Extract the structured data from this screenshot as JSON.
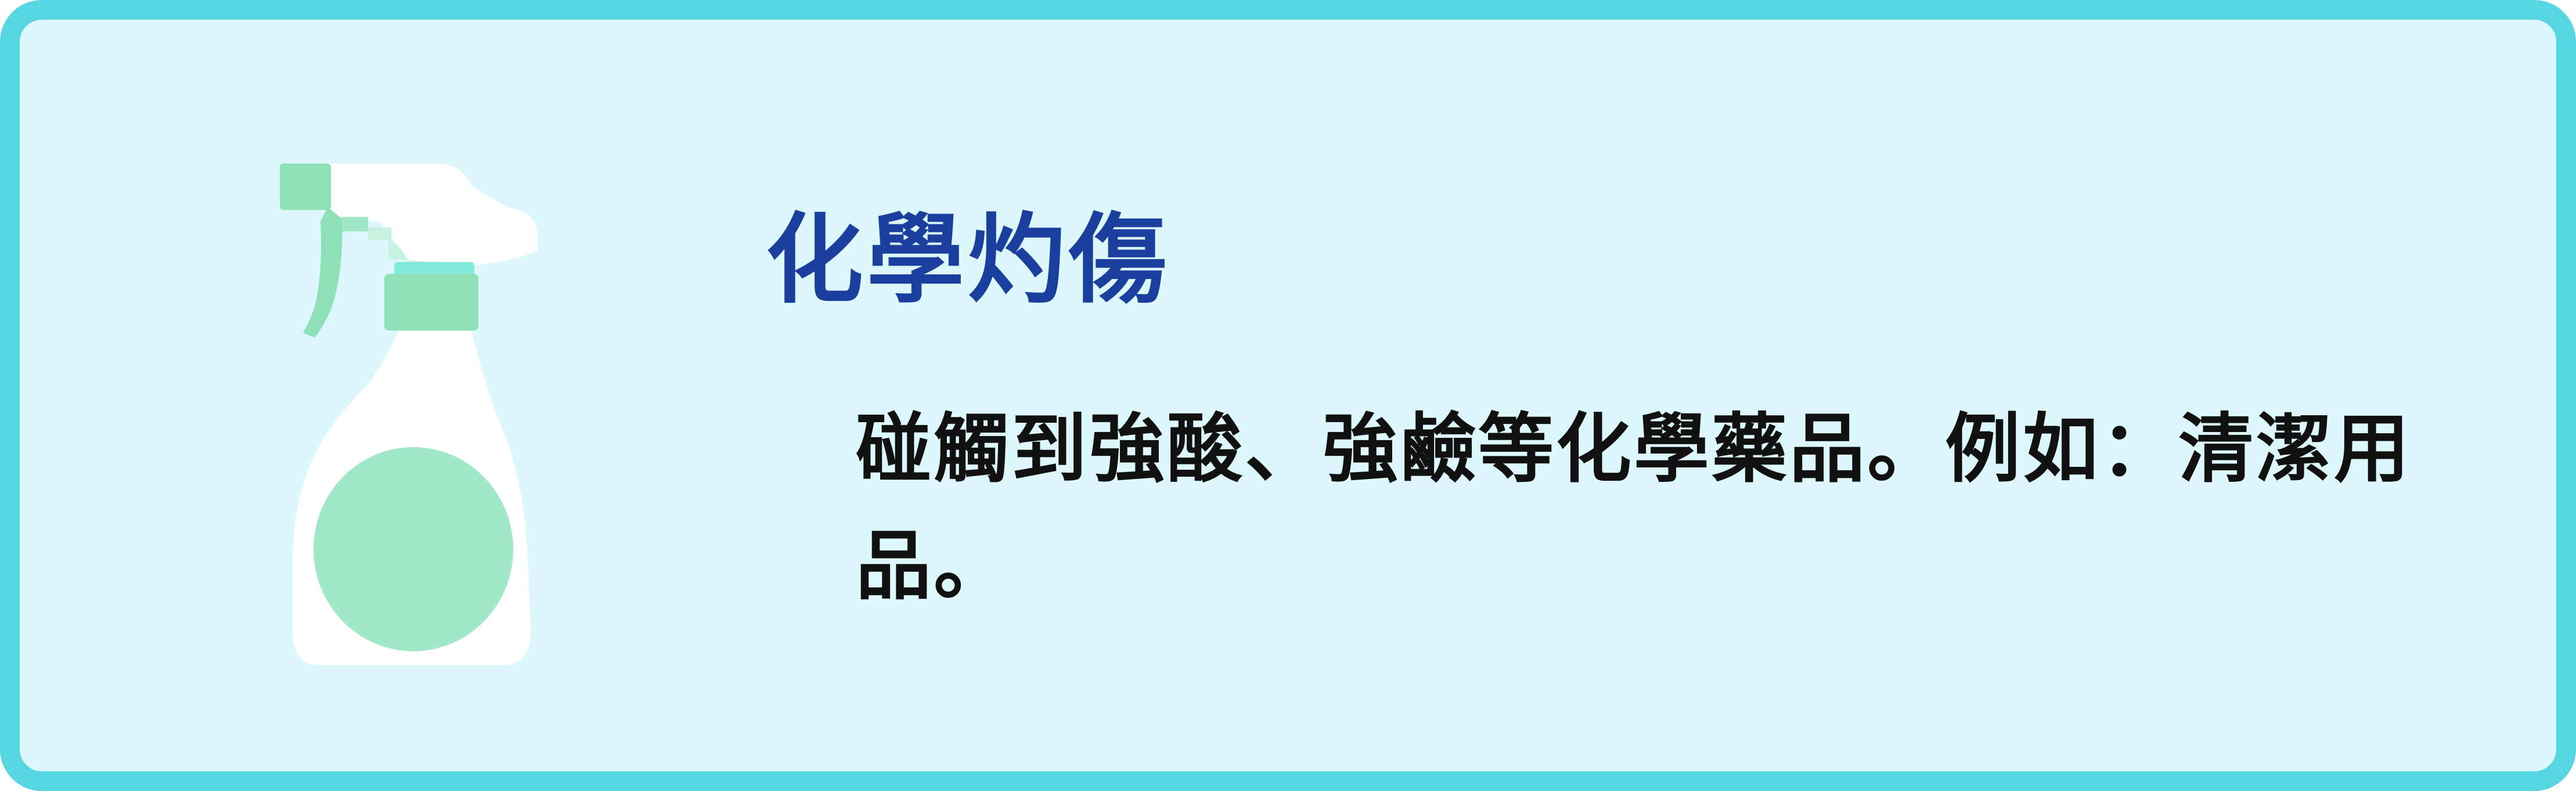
{
  "card": {
    "title": "化學灼傷",
    "description": "碰觸到強酸、強鹼等化學藥品。例如：清潔用品。"
  },
  "illustration": {
    "icon": "spray-bottle-icon"
  },
  "colors": {
    "border": "#55d6e0",
    "background": "#dcf8fc",
    "title": "#1b3f9e",
    "text": "#111111",
    "bottle_body": "#ffffff",
    "bottle_accent": "#8ee0b6",
    "bottle_label": "#a1e8c8",
    "bottle_cap": "#7fe8d8"
  }
}
